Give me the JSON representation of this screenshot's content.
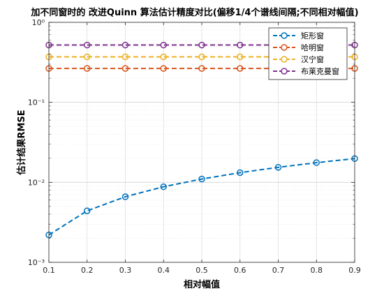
{
  "chart_data": {
    "type": "line",
    "title": "加不同窗时的 改进Quinn 算法估计精度对比(偏移1/4个谱线间隔;不同相对幅值)",
    "xlabel": "相对幅值",
    "ylabel": "估计结果RMSE",
    "yscale": "log",
    "xlim": [
      0.1,
      0.9
    ],
    "ylim": [
      0.001,
      1
    ],
    "x": [
      0.1,
      0.2,
      0.3,
      0.4,
      0.5,
      0.6,
      0.7,
      0.8,
      0.9
    ],
    "x_tick_labels": [
      "0.1",
      "0.2",
      "0.3",
      "0.4",
      "0.5",
      "0.6",
      "0.7",
      "0.8",
      "0.9"
    ],
    "y_tick_labels": [
      "10⁻³",
      "10⁻²",
      "10⁻¹",
      "10⁰"
    ],
    "grid": true,
    "legend_position": "top-right",
    "series": [
      {
        "name": "矩形窗",
        "color": "#0072BD",
        "values": [
          0.0022,
          0.0044,
          0.0066,
          0.0088,
          0.011,
          0.0132,
          0.0154,
          0.0176,
          0.0198
        ]
      },
      {
        "name": "哈明窗",
        "color": "#D95319",
        "values": [
          0.265,
          0.265,
          0.265,
          0.265,
          0.265,
          0.265,
          0.265,
          0.265,
          0.265
        ]
      },
      {
        "name": "汉宁窗",
        "color": "#EDB120",
        "values": [
          0.37,
          0.37,
          0.37,
          0.37,
          0.37,
          0.37,
          0.37,
          0.37,
          0.37
        ]
      },
      {
        "name": "布莱克曼窗",
        "color": "#7E2F8E",
        "values": [
          0.52,
          0.52,
          0.52,
          0.52,
          0.52,
          0.52,
          0.52,
          0.52,
          0.52
        ]
      }
    ]
  }
}
